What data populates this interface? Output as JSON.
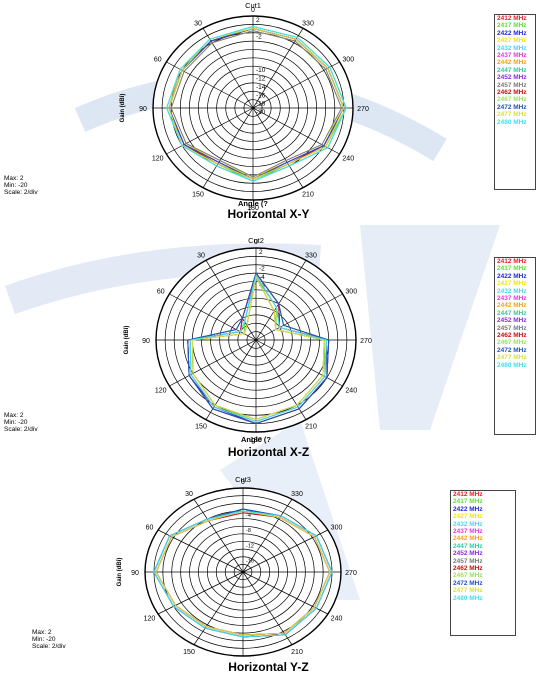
{
  "frequencies": [
    "2412 MHz",
    "2417 MHz",
    "2422 MHz",
    "2427 MHz",
    "2432 MHz",
    "2437 MHz",
    "2442 MHz",
    "2447 MHz",
    "2452 MHz",
    "2457 MHz",
    "2462 MHz",
    "2467 MHz",
    "2472 MHz",
    "2477 MHz",
    "2480 MHz"
  ],
  "series_colors": [
    "#e8202a",
    "#5fe03a",
    "#1c2bd4",
    "#f2e800",
    "#4fd6e8",
    "#e83ad8",
    "#f5a020",
    "#33c9a0",
    "#8a2be2",
    "#7a7a7a",
    "#c81010",
    "#9ae060",
    "#2050c0",
    "#d8e040",
    "#40e0f0"
  ],
  "chart_data": [
    {
      "type": "polar",
      "title": "Cut1",
      "caption": "Horizontal  X-Y",
      "radial_label": "Gain (dBi)",
      "angle_label": "Angle (?",
      "angle_ticks": [
        "0",
        "30",
        "60",
        "90",
        "120",
        "150",
        "180",
        "210",
        "240",
        "270",
        "300",
        "330"
      ],
      "angle_tick_labels_shown": [
        "0",
        "330",
        "300",
        "270",
        "240",
        "210",
        "180",
        "150",
        "120",
        "90",
        "60",
        "30"
      ],
      "radial_ticks": [
        "2",
        "-2",
        "-10",
        "-12",
        "-14",
        "-16",
        "-18",
        "-20"
      ],
      "rlim": [
        -20,
        2
      ],
      "stats": {
        "max": "Max: 2",
        "min": "Min: -20",
        "scale": "Scale: 2/div"
      },
      "angles_deg": [
        0,
        30,
        60,
        90,
        120,
        150,
        180,
        210,
        240,
        270,
        300,
        330
      ],
      "series": [
        {
          "name": "2412 MHz",
          "values": [
            -1,
            -1.5,
            -2,
            -1.5,
            -2.5,
            -5,
            -3,
            -5,
            -2,
            0,
            -1,
            -1
          ]
        },
        {
          "name": "2417 MHz",
          "values": [
            -0.5,
            -1,
            -1.5,
            -1,
            -2,
            -4.5,
            -2.5,
            -4.5,
            -1.5,
            0.5,
            -0.5,
            -0.5
          ]
        },
        {
          "name": "2422 MHz",
          "values": [
            -1,
            -1.5,
            -2,
            -1.5,
            -2,
            -4.5,
            -3,
            -4.5,
            -1.5,
            0,
            -1,
            -1
          ]
        },
        {
          "name": "2427 MHz",
          "values": [
            -1.5,
            -2,
            -2.5,
            -2,
            -3,
            -5,
            -3.5,
            -5,
            -2,
            -0.5,
            -1.5,
            -1.5
          ]
        },
        {
          "name": "2432 MHz",
          "values": [
            -0.5,
            -1,
            -1.5,
            -1,
            -2,
            -4,
            -2.5,
            -4,
            -1,
            0.5,
            -0.5,
            -0.5
          ]
        },
        {
          "name": "2437 MHz",
          "values": [
            -1,
            -1.5,
            -2,
            -1.5,
            -2.5,
            -5,
            -3,
            -5,
            -2,
            0,
            -1,
            -1
          ]
        },
        {
          "name": "2442 MHz",
          "values": [
            -1,
            -1,
            -1.5,
            -1.5,
            -2,
            -4.5,
            -3,
            -4.5,
            -1.5,
            0,
            -1,
            -1
          ]
        },
        {
          "name": "2447 MHz",
          "values": [
            -0.5,
            -1,
            -1.5,
            -1,
            -2,
            -4,
            -2.5,
            -4,
            -1,
            0.5,
            -0.5,
            -0.5
          ]
        },
        {
          "name": "2452 MHz",
          "values": [
            -1,
            -1.5,
            -2,
            -1.5,
            -2.5,
            -5,
            -3,
            -5,
            -2,
            0,
            -1,
            -1
          ]
        },
        {
          "name": "2457 MHz",
          "values": [
            -1.5,
            -2,
            -2.5,
            -2,
            -3,
            -5.5,
            -3.5,
            -5.5,
            -2.5,
            -0.5,
            -1.5,
            -1.5
          ]
        },
        {
          "name": "2462 MHz",
          "values": [
            -1,
            -1.5,
            -2,
            -1.5,
            -2.5,
            -4.5,
            -3,
            -4.5,
            -2,
            0,
            -1,
            -1
          ]
        },
        {
          "name": "2467 MHz",
          "values": [
            -0.5,
            -1,
            -1.5,
            -1,
            -2,
            -4,
            -2.5,
            -4,
            -1,
            0.5,
            -0.5,
            -0.5
          ]
        },
        {
          "name": "2472 MHz",
          "values": [
            -1,
            -1.5,
            -2,
            -1.5,
            -2.5,
            -5,
            -3,
            -5,
            -2,
            0,
            -1,
            -1
          ]
        },
        {
          "name": "2477 MHz",
          "values": [
            -1,
            -1,
            -2,
            -1.5,
            -2,
            -4.5,
            -3,
            -4.5,
            -1.5,
            0,
            -1,
            -1
          ]
        },
        {
          "name": "2480 MHz",
          "values": [
            -0.5,
            -1,
            -1.5,
            -1,
            -2,
            -4,
            -2.5,
            -4,
            -1,
            0.5,
            -0.5,
            -0.5
          ]
        }
      ]
    },
    {
      "type": "polar",
      "title": "Cut2",
      "caption": "Horizontal X-Z",
      "radial_label": "Gain (dBi)",
      "angle_label": "Angle (?",
      "angle_ticks": [
        "0",
        "30",
        "60",
        "90",
        "120",
        "150",
        "180",
        "210",
        "240",
        "270",
        "300",
        "330"
      ],
      "angle_tick_labels_shown": [
        "0",
        "330",
        "300",
        "270",
        "240",
        "210",
        "180",
        "150",
        "120",
        "90",
        "60",
        "30"
      ],
      "radial_ticks": [
        "2",
        "-2",
        "-4",
        "-6"
      ],
      "rlim": [
        -20,
        2
      ],
      "stats": {
        "max": "Max: 2",
        "min": "Min: -20",
        "scale": "Scale: 2/div"
      },
      "angles_deg": [
        0,
        30,
        60,
        90,
        120,
        150,
        180,
        210,
        240,
        270,
        300,
        330
      ],
      "series": [
        {
          "name": "2412 MHz",
          "values": [
            -4,
            -14,
            -16,
            -5,
            -3,
            -1,
            0,
            -1,
            -2,
            -4,
            -14,
            -10
          ]
        },
        {
          "name": "2417 MHz",
          "values": [
            -5,
            -15,
            -17,
            -6,
            -4,
            -2,
            -0.5,
            -1.5,
            -2.5,
            -5,
            -15,
            -11
          ]
        },
        {
          "name": "2422 MHz",
          "values": [
            -4,
            -15,
            -16,
            -5,
            -3,
            -1.5,
            0,
            -1,
            -2,
            -4.5,
            -14,
            -10
          ]
        },
        {
          "name": "2427 MHz",
          "values": [
            -5,
            -16,
            -17,
            -6,
            -4,
            -2,
            -1,
            -2,
            -3,
            -5,
            -15,
            -12
          ]
        },
        {
          "name": "2432 MHz",
          "values": [
            -4,
            -14,
            -15,
            -5,
            -3,
            -1,
            0,
            -1,
            -2,
            -4,
            -13,
            -10
          ]
        },
        {
          "name": "2437 MHz",
          "values": [
            -4.5,
            -14,
            -16,
            -5.5,
            -3.5,
            -1.5,
            -0.5,
            -1.5,
            -2.5,
            -4.5,
            -14,
            -11
          ]
        },
        {
          "name": "2442 MHz",
          "values": [
            -5,
            -16,
            -17,
            -6,
            -4,
            -2,
            -1,
            -2,
            -3,
            -5,
            -15,
            -12
          ]
        },
        {
          "name": "2447 MHz",
          "values": [
            -4,
            -14,
            -15,
            -5,
            -3,
            -1,
            0,
            -1,
            -2,
            -4,
            -13,
            -10
          ]
        },
        {
          "name": "2452 MHz",
          "values": [
            -4.5,
            -15,
            -16,
            -5.5,
            -3.5,
            -1.5,
            -0.5,
            -1.5,
            -2.5,
            -4.5,
            -14,
            -11
          ]
        },
        {
          "name": "2457 MHz",
          "values": [
            -5,
            -16,
            -17,
            -6,
            -4,
            -2,
            -1,
            -2,
            -3,
            -5,
            -15,
            -12
          ]
        },
        {
          "name": "2462 MHz",
          "values": [
            -4,
            -14,
            -16,
            -5,
            -3,
            -1,
            0,
            -1,
            -2,
            -4,
            -14,
            -10
          ]
        },
        {
          "name": "2467 MHz",
          "values": [
            -4.5,
            -15,
            -16,
            -5.5,
            -3.5,
            -1.5,
            -0.5,
            -1.5,
            -2.5,
            -4.5,
            -14,
            -11
          ]
        },
        {
          "name": "2472 MHz",
          "values": [
            -4,
            -14,
            -15,
            -5,
            -3,
            -1,
            0,
            -1,
            -2,
            -4,
            -13,
            -10
          ]
        },
        {
          "name": "2477 MHz",
          "values": [
            -5,
            -16,
            -17,
            -6,
            -4,
            -2,
            -1,
            -2,
            -3,
            -5,
            -15,
            -12
          ]
        },
        {
          "name": "2480 MHz",
          "values": [
            -4.5,
            -15,
            -16,
            -5.5,
            -3.5,
            -1.5,
            -0.5,
            -1.5,
            -2.5,
            -4.5,
            -14,
            -11
          ]
        }
      ]
    },
    {
      "type": "polar",
      "title": "Cut3",
      "caption": "Horizontal Y-Z",
      "radial_label": "Gain (dBi)",
      "angle_label": "",
      "angle_ticks": [
        "0",
        "30",
        "60",
        "90",
        "120",
        "150",
        "180",
        "210",
        "240",
        "270",
        "300",
        "330"
      ],
      "angle_tick_labels_shown": [
        "0",
        "330",
        "300",
        "270",
        "240",
        "210",
        "180",
        "150",
        "120",
        "90",
        "60",
        "30"
      ],
      "radial_ticks": [
        "-4",
        "-8",
        "-12",
        "-16"
      ],
      "rlim": [
        -20,
        2
      ],
      "stats": {
        "max": "Max: 2",
        "min": "Min: -20",
        "scale": "Scale: 2/div"
      },
      "angles_deg": [
        0,
        30,
        60,
        90,
        120,
        150,
        180,
        210,
        240,
        270,
        300,
        330
      ],
      "series": [
        {
          "name": "2412 MHz",
          "values": [
            -4,
            -4,
            -1,
            0,
            -2,
            -3,
            -3,
            -1,
            -1,
            0,
            -1,
            -3
          ]
        },
        {
          "name": "2417 MHz",
          "values": [
            -4.5,
            -4.5,
            -1.5,
            -0.5,
            -2.5,
            -3.5,
            -3.5,
            -1.5,
            -1.5,
            -0.5,
            -1.5,
            -3.5
          ]
        },
        {
          "name": "2422 MHz",
          "values": [
            -3.5,
            -4,
            -1,
            0,
            -2,
            -3,
            -3,
            -1,
            -1,
            0,
            -1,
            -3
          ]
        },
        {
          "name": "2427 MHz",
          "values": [
            -4,
            -4.5,
            -1.5,
            -0.5,
            -2.5,
            -3.5,
            -3.5,
            -1.5,
            -1.5,
            -0.5,
            -1.5,
            -3.5
          ]
        },
        {
          "name": "2432 MHz",
          "values": [
            -4,
            -4,
            -1,
            0,
            -2,
            -3,
            -3,
            -1,
            -1,
            0,
            -1,
            -3
          ]
        },
        {
          "name": "2437 MHz",
          "values": [
            -4.5,
            -4.5,
            -1.5,
            -0.5,
            -2.5,
            -3.5,
            -3.5,
            -1.5,
            -1.5,
            -0.5,
            -1.5,
            -3.5
          ]
        },
        {
          "name": "2442 MHz",
          "values": [
            -4,
            -4,
            -1,
            0,
            -2,
            -3,
            -3,
            -1,
            -1,
            0,
            -1,
            -3
          ]
        },
        {
          "name": "2447 MHz",
          "values": [
            -3.5,
            -4,
            -1,
            0,
            -2,
            -3,
            -3,
            -1,
            -1,
            0,
            -1,
            -3
          ]
        },
        {
          "name": "2452 MHz",
          "values": [
            -4,
            -4.5,
            -1.5,
            -0.5,
            -2.5,
            -3.5,
            -3.5,
            -1.5,
            -1.5,
            -0.5,
            -1.5,
            -3.5
          ]
        },
        {
          "name": "2457 MHz",
          "values": [
            -4,
            -4,
            -1,
            0,
            -2,
            -3,
            -3,
            -1,
            -1,
            0,
            -1,
            -3
          ]
        },
        {
          "name": "2462 MHz",
          "values": [
            -4.5,
            -4.5,
            -1.5,
            -0.5,
            -2.5,
            -3.5,
            -3.5,
            -1.5,
            -1.5,
            -0.5,
            -1.5,
            -3.5
          ]
        },
        {
          "name": "2467 MHz",
          "values": [
            -4,
            -4,
            -1,
            0,
            -2,
            -3,
            -3,
            -1,
            -1,
            0,
            -1,
            -3
          ]
        },
        {
          "name": "2472 MHz",
          "values": [
            -3.5,
            -4,
            -1,
            0,
            -2,
            -3,
            -3,
            -1,
            -1,
            0,
            -1,
            -3
          ]
        },
        {
          "name": "2477 MHz",
          "values": [
            -4,
            -4.5,
            -1.5,
            -0.5,
            -2.5,
            -3.5,
            -3.5,
            -1.5,
            -1.5,
            -0.5,
            -1.5,
            -3.5
          ]
        },
        {
          "name": "2480 MHz",
          "values": [
            -4,
            -4,
            -1,
            0,
            -2,
            -3,
            -3,
            -1,
            -1,
            0,
            -1,
            -3
          ]
        }
      ]
    }
  ]
}
